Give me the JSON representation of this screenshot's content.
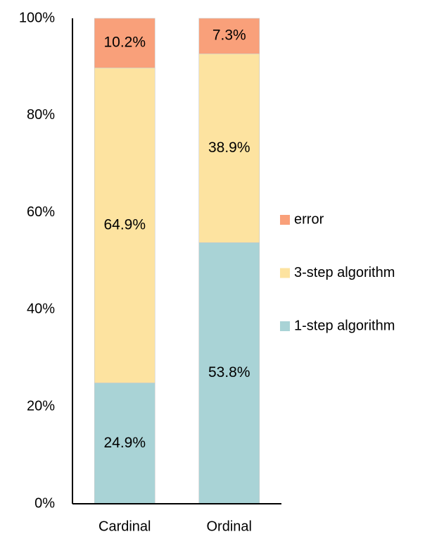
{
  "chart_data": {
    "type": "stacked_bar",
    "categories": [
      "Cardinal",
      "Ordinal"
    ],
    "series": [
      {
        "name": "1-step algorithm",
        "color": "#a9d3d6",
        "values": [
          24.9,
          53.8
        ],
        "value_labels": [
          "24.9%",
          "53.8%"
        ]
      },
      {
        "name": "3-step algorithm",
        "color": "#fde3a0",
        "values": [
          64.9,
          38.9
        ],
        "value_labels": [
          "64.9%",
          "38.9%"
        ]
      },
      {
        "name": "error",
        "color": "#f9a07a",
        "values": [
          10.2,
          7.3
        ],
        "value_labels": [
          "10.2%",
          "7.3%"
        ]
      }
    ],
    "ylim": [
      0,
      100
    ],
    "yticks": [
      {
        "value": 0,
        "label": "0%"
      },
      {
        "value": 20,
        "label": "20%"
      },
      {
        "value": 40,
        "label": "40%"
      },
      {
        "value": 60,
        "label": "60%"
      },
      {
        "value": 80,
        "label": "80%"
      },
      {
        "value": 100,
        "label": "100%"
      }
    ],
    "grid": false,
    "legend": "right"
  }
}
